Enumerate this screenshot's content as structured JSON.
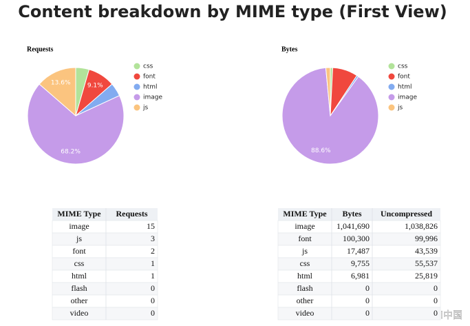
{
  "title": "Content breakdown by MIME type (First View)",
  "chart_data": [
    {
      "type": "pie",
      "title": "Requests",
      "categories": [
        "css",
        "font",
        "html",
        "image",
        "js"
      ],
      "values": [
        4.5,
        9.1,
        4.5,
        68.2,
        13.6
      ],
      "value_labels": [
        null,
        "9.1%",
        null,
        "68.2%",
        "13.6%"
      ],
      "colors": [
        "#b2e39a",
        "#f0483e",
        "#82abf0",
        "#c59be9",
        "#fbc47f"
      ]
    },
    {
      "type": "pie",
      "title": "Bytes",
      "categories": [
        "css",
        "font",
        "html",
        "image",
        "js"
      ],
      "values": [
        0.8,
        8.5,
        0.6,
        88.6,
        1.5
      ],
      "value_labels": [
        null,
        null,
        null,
        "88.6%",
        null
      ],
      "colors": [
        "#b2e39a",
        "#f0483e",
        "#82abf0",
        "#c59be9",
        "#fbc47f"
      ]
    }
  ],
  "tables": [
    {
      "columns": [
        "MIME Type",
        "Requests"
      ],
      "rows": [
        [
          "image",
          "15"
        ],
        [
          "js",
          "3"
        ],
        [
          "font",
          "2"
        ],
        [
          "css",
          "1"
        ],
        [
          "html",
          "1"
        ],
        [
          "flash",
          "0"
        ],
        [
          "other",
          "0"
        ],
        [
          "video",
          "0"
        ]
      ]
    },
    {
      "columns": [
        "MIME Type",
        "Bytes",
        "Uncompressed"
      ],
      "rows": [
        [
          "image",
          "1,041,690",
          "1,038,826"
        ],
        [
          "font",
          "100,300",
          "99,996"
        ],
        [
          "js",
          "17,487",
          "43,539"
        ],
        [
          "css",
          "9,755",
          "55,537"
        ],
        [
          "html",
          "6,981",
          "25,819"
        ],
        [
          "flash",
          "0",
          "0"
        ],
        [
          "other",
          "0",
          "0"
        ],
        [
          "video",
          "0",
          "0"
        ]
      ]
    }
  ],
  "watermark": "头条号 / AI中国"
}
